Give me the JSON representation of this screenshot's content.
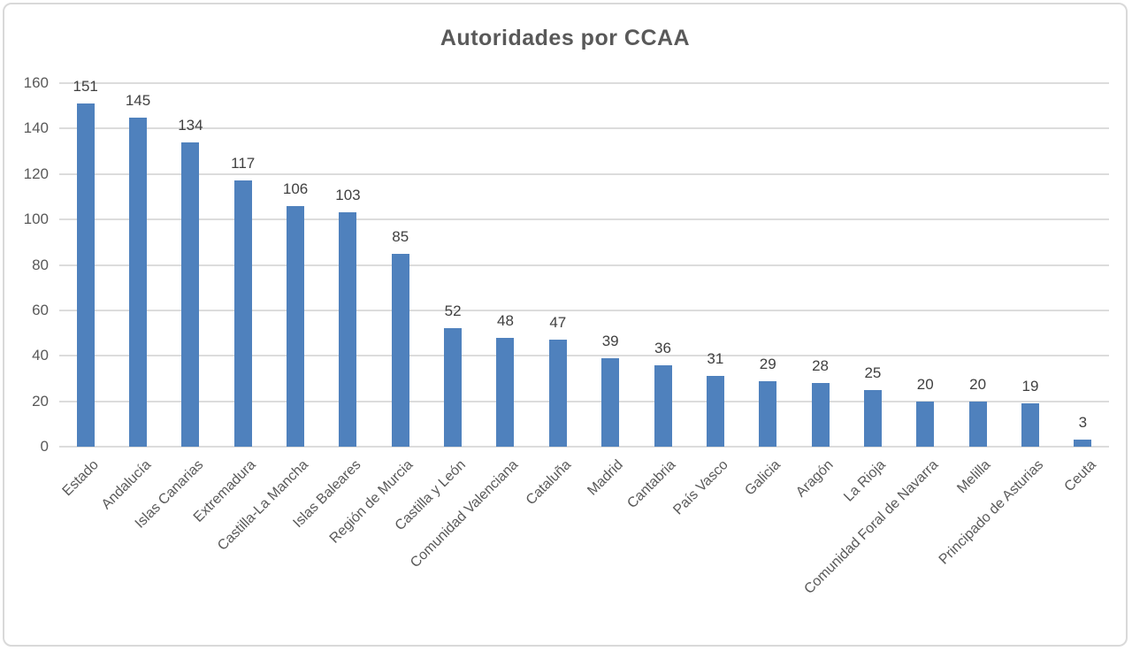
{
  "chart_data": {
    "type": "bar",
    "title": "Autoridades por CCAA",
    "categories": [
      "Estado",
      "Andalucía",
      "Islas Canarias",
      "Extremadura",
      "Castilla-La Mancha",
      "Islas Baleares",
      "Región de Murcia",
      "Castilla y León",
      "Comunidad Valenciana",
      "Cataluña",
      "Madrid",
      "Cantabria",
      "País Vasco",
      "Galicia",
      "Aragón",
      "La Rioja",
      "Comunidad Foral de Navarra",
      "Melilla",
      "Principado de Asturias",
      "Ceuta"
    ],
    "values": [
      151,
      145,
      134,
      117,
      106,
      103,
      85,
      52,
      48,
      47,
      39,
      36,
      31,
      29,
      28,
      25,
      20,
      20,
      19,
      3
    ],
    "xlabel": "",
    "ylabel": "",
    "ylim": [
      0,
      160
    ],
    "yticks": [
      0,
      20,
      40,
      60,
      80,
      100,
      120,
      140,
      160
    ],
    "grid": true,
    "legend": "none",
    "colors": {
      "bar": "#4f81bd",
      "gridline": "#dcdcdc",
      "value_label": "#404040",
      "axis_label": "#595959",
      "title": "#595959",
      "border": "#d9d9d9",
      "background": "#ffffff"
    }
  }
}
